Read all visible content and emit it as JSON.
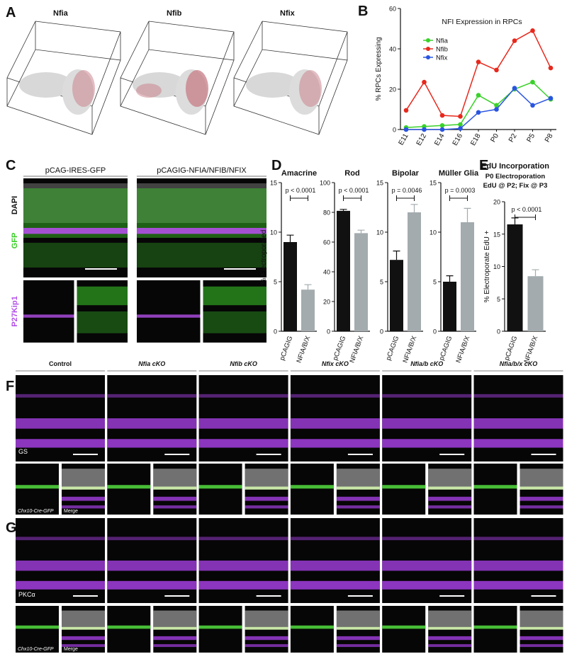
{
  "panel_labels": [
    "A",
    "B",
    "C",
    "D",
    "E",
    "F",
    "G"
  ],
  "panel_a": {
    "titles": [
      "Nfia",
      "Nfib",
      "Nfix"
    ]
  },
  "panel_c": {
    "columns": [
      "pCAG-IRES-GFP",
      "pCAGIG-NFIA/NFIB/NFIX"
    ],
    "channels": [
      "DAPI",
      "GFP",
      "P27Kip1"
    ]
  },
  "panel_fg": {
    "columns": [
      "Control",
      "Nfia cKO",
      "Nfib cKO",
      "Nfix cKO",
      "Nfia/b cKO",
      "Nfia/b/x cKO"
    ],
    "markers": [
      "GS",
      "PKCα"
    ],
    "insets": [
      "Chx10-Cre-GFP",
      "Merge"
    ]
  },
  "chart_data": [
    {
      "type": "line",
      "title": "NFI Expression in RPCs",
      "y_label": "% RPCs Expressing",
      "categories": [
        "E11",
        "E12",
        "E14",
        "E16",
        "E18",
        "P0",
        "P2",
        "P5",
        "P8"
      ],
      "series": [
        {
          "name": "Nfia",
          "color": "#3ad12a",
          "values": [
            1,
            1.5,
            2,
            2.5,
            17,
            12,
            20,
            23.5,
            15
          ]
        },
        {
          "name": "Nfib",
          "color": "#e8281c",
          "values": [
            9.5,
            23.5,
            7,
            6.5,
            33.5,
            29.5,
            44,
            49,
            30.5
          ]
        },
        {
          "name": "Nfix",
          "color": "#2a55e0",
          "values": [
            0,
            0,
            0,
            0.5,
            8.5,
            10,
            20.5,
            12,
            15.5
          ]
        }
      ],
      "ylim": [
        0,
        60
      ],
      "yticks": [
        0,
        20,
        40,
        60
      ],
      "legend": "upper left"
    },
    {
      "type": "bar",
      "title": "Amacrine",
      "y_label": "% Electroporated",
      "categories": [
        "pCAGIG",
        "NFIA/B/X"
      ],
      "values": [
        9,
        4.2
      ],
      "errors": [
        0.7,
        0.5
      ],
      "colors": [
        "#111111",
        "#a3abae"
      ],
      "ylim": [
        0,
        15
      ],
      "yticks": [
        0,
        5,
        10,
        15
      ],
      "annotation": "p < 0.0001"
    },
    {
      "type": "bar",
      "title": "Rod",
      "categories": [
        "pCAGIG",
        "NFIA/B/X"
      ],
      "values": [
        81,
        66
      ],
      "errors": [
        1,
        2
      ],
      "colors": [
        "#111111",
        "#a3abae"
      ],
      "ylim": [
        0,
        100
      ],
      "yticks": [
        0,
        20,
        40,
        60,
        80,
        100
      ],
      "annotation": "p < 0.0001"
    },
    {
      "type": "bar",
      "title": "Bipolar",
      "categories": [
        "pCAGIG",
        "NFIA/B/X"
      ],
      "values": [
        7.2,
        12
      ],
      "errors": [
        0.9,
        0.8
      ],
      "colors": [
        "#111111",
        "#a3abae"
      ],
      "ylim": [
        0,
        15
      ],
      "yticks": [
        0,
        5,
        10,
        15
      ],
      "annotation": "p = 0.0046"
    },
    {
      "type": "bar",
      "title": "Müller Glia",
      "categories": [
        "pCAGIG",
        "NFIA/B/X"
      ],
      "values": [
        5,
        11
      ],
      "errors": [
        0.6,
        1.4
      ],
      "colors": [
        "#111111",
        "#a3abae"
      ],
      "ylim": [
        0,
        15
      ],
      "yticks": [
        0,
        5,
        10,
        15
      ],
      "annotation": "p = 0.0003"
    },
    {
      "type": "bar",
      "title": "EdU Incorporation",
      "subtitle": [
        "P0 Electroporation",
        "EdU @ P2; Fix @ P3"
      ],
      "y_label": "% Electroporate EdU +",
      "categories": [
        "pCAGIG",
        "NFIA/B/X"
      ],
      "values": [
        16.5,
        8.5
      ],
      "errors": [
        1,
        1
      ],
      "colors": [
        "#111111",
        "#a3abae"
      ],
      "ylim": [
        0,
        20
      ],
      "yticks": [
        0,
        5,
        10,
        15,
        20
      ],
      "annotation": "p < 0.0001"
    }
  ]
}
